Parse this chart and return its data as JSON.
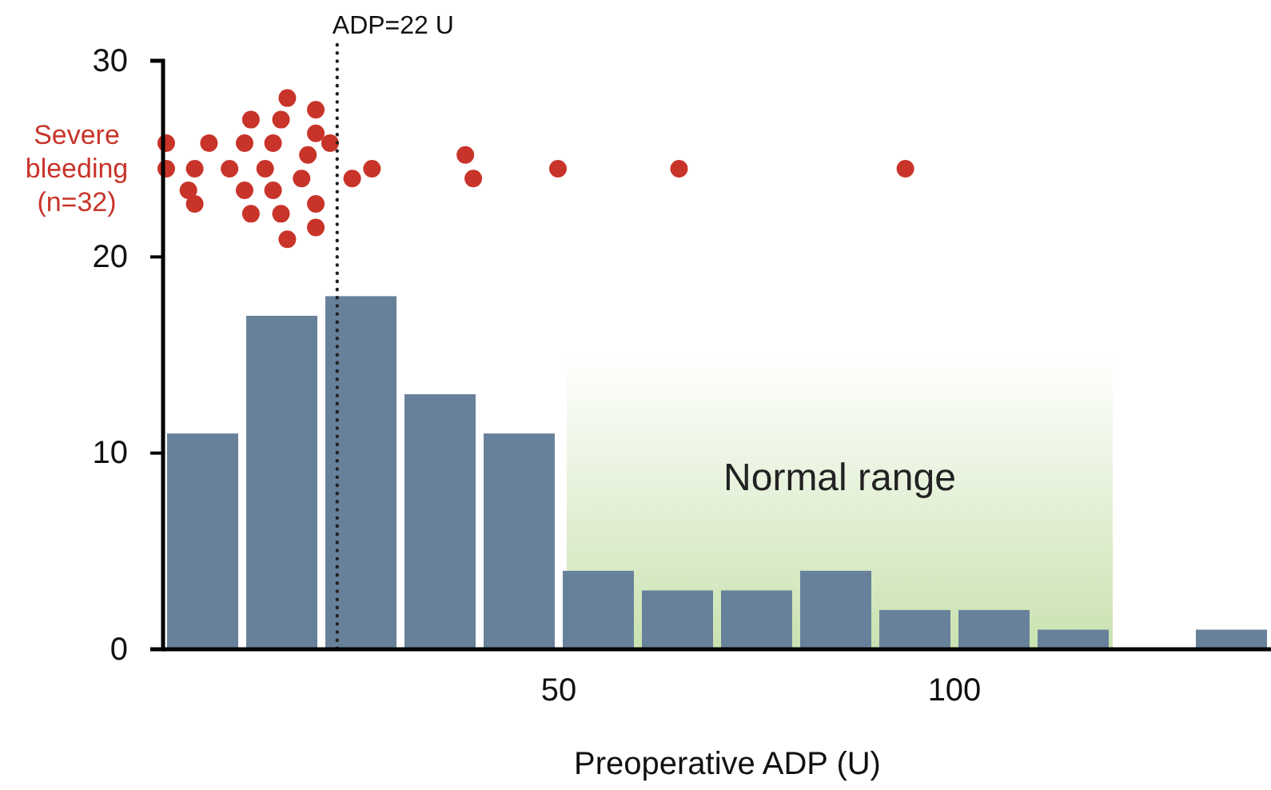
{
  "chart_data": {
    "type": "histogram",
    "xlabel": "Preoperative ADP (U)",
    "bins": [
      0,
      10,
      20,
      30,
      40,
      50,
      60,
      70,
      80,
      90,
      100,
      110,
      120,
      130,
      140
    ],
    "xlim": [
      0,
      140
    ],
    "xticks": [
      50,
      100
    ],
    "ylim": [
      0,
      30
    ],
    "yticks": [
      0,
      10,
      20,
      30
    ],
    "grid": false,
    "marker": "circle",
    "series": [
      {
        "color": "#68819a",
        "values": [
          11,
          17,
          18,
          13,
          11,
          4,
          3,
          3,
          4,
          2,
          2,
          1,
          0,
          1
        ]
      },
      {
        "type": "scatter",
        "name": "Severe bleeding (n=32)",
        "color": "#c8342a",
        "x": [
          0.4,
          0.4,
          4.0,
          3.2,
          4.0,
          5.8,
          8.4,
          10.3,
          11.1,
          10.3,
          11.1,
          12.9,
          13.9,
          14.9,
          13.9,
          14.9,
          15.7,
          17.5,
          18.3,
          19.3,
          19.3,
          19.3,
          19.3,
          15.7,
          21.1,
          23.9,
          26.4,
          38.2,
          39.2,
          49.9,
          65.2,
          93.8
        ],
        "values": [
          25.8,
          24.5,
          24.5,
          23.4,
          22.7,
          25.8,
          24.5,
          25.8,
          27.0,
          23.4,
          22.2,
          24.5,
          25.8,
          27.0,
          23.4,
          22.2,
          28.1,
          24.0,
          25.2,
          27.5,
          26.3,
          22.7,
          21.5,
          20.9,
          25.8,
          24.0,
          24.5,
          25.2,
          24.0,
          24.5,
          24.5,
          24.5
        ]
      }
    ],
    "ref_lines": [
      {
        "axis": "x",
        "value": 22,
        "label": "ADP=22 U",
        "line_style": "dotted",
        "color": "#222222"
      }
    ],
    "bands": [
      {
        "axis": "x",
        "from": 51,
        "to": 120,
        "label": "Normal range",
        "color": "#c9e2b0"
      }
    ]
  }
}
